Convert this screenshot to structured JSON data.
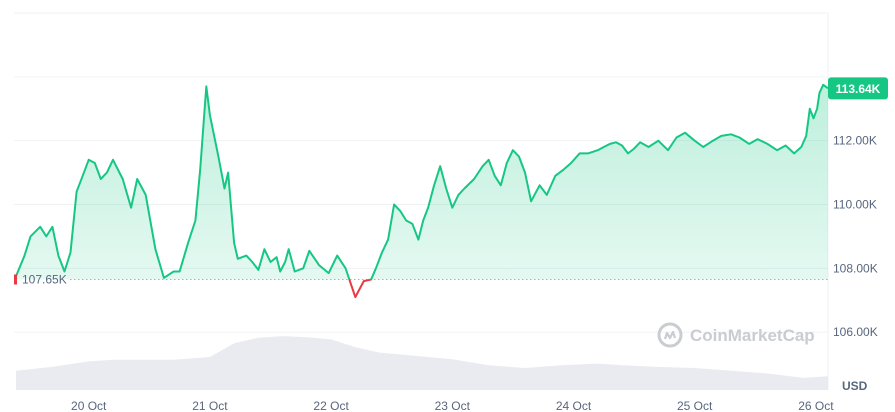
{
  "chart_data": {
    "type": "area",
    "ylabel": "USD",
    "ylim": [
      104000,
      116000
    ],
    "yticks": [
      106000,
      108000,
      110000,
      112000
    ],
    "ytick_labels": [
      "106.00K",
      "108.00K",
      "110.00K",
      "112.00K"
    ],
    "open_label": "107.65K",
    "open_value": 107650,
    "current_label": "113.64K",
    "current_value": 113640,
    "xticks": [
      {
        "t": 0.6,
        "label": "20 Oct"
      },
      {
        "t": 1.6,
        "label": "21 Oct"
      },
      {
        "t": 2.6,
        "label": "22 Oct"
      },
      {
        "t": 3.6,
        "label": "23 Oct"
      },
      {
        "t": 4.6,
        "label": "24 Oct"
      },
      {
        "t": 5.6,
        "label": "25 Oct"
      },
      {
        "t": 6.6,
        "label": "26 Oct"
      }
    ],
    "watermark": "CoinMarketCap",
    "colors": {
      "up": "#16c784",
      "down": "#ea3943",
      "fill_top": "#16c784",
      "badge": "#16c784",
      "volume": "#e7e9ee"
    },
    "series": [
      {
        "t": [
          0.0,
          0.07,
          0.12,
          0.2,
          0.25,
          0.3,
          0.35,
          0.4,
          0.45,
          0.5,
          0.55,
          0.6,
          0.65,
          0.7,
          0.75,
          0.8,
          0.88,
          0.95,
          1.0,
          1.07,
          1.15,
          1.22,
          1.3,
          1.35,
          1.42,
          1.48,
          1.52,
          1.57,
          1.6,
          1.67,
          1.72,
          1.75,
          1.8,
          1.83,
          1.9,
          1.95,
          2.0,
          2.05,
          2.1,
          2.15,
          2.18,
          2.22,
          2.25,
          2.3,
          2.37,
          2.42,
          2.5,
          2.58,
          2.65,
          2.72,
          2.8,
          2.87,
          2.93,
          2.97,
          3.02,
          3.07,
          3.12,
          3.17,
          3.22,
          3.27,
          3.32,
          3.36,
          3.4,
          3.45,
          3.5,
          3.55,
          3.6,
          3.65,
          3.7,
          3.78,
          3.85,
          3.9,
          3.95,
          4.0,
          4.05,
          4.1,
          4.15,
          4.2,
          4.25,
          4.32,
          4.38,
          4.45,
          4.52,
          4.58,
          4.65,
          4.72,
          4.8,
          4.85,
          4.9,
          4.95,
          5.0,
          5.05,
          5.1,
          5.15,
          5.22,
          5.3,
          5.38,
          5.45,
          5.52,
          5.6,
          5.67,
          5.75,
          5.82,
          5.9,
          5.97,
          6.05,
          6.12,
          6.2,
          6.28,
          6.35,
          6.42,
          6.48,
          6.52,
          6.55,
          6.58,
          6.61,
          6.63,
          6.66,
          6.7
        ],
        "value": [
          107.75,
          108.4,
          109.0,
          109.3,
          109.0,
          109.3,
          108.4,
          107.9,
          108.5,
          110.4,
          110.9,
          111.4,
          111.3,
          110.8,
          111.0,
          111.4,
          110.8,
          109.9,
          110.8,
          110.3,
          108.6,
          107.7,
          107.9,
          107.9,
          108.8,
          109.5,
          111.1,
          113.7,
          112.8,
          111.5,
          110.5,
          111.0,
          108.8,
          108.3,
          108.4,
          108.2,
          107.95,
          108.6,
          108.2,
          108.35,
          107.9,
          108.2,
          108.6,
          107.9,
          108.0,
          108.55,
          108.1,
          107.85,
          108.4,
          108.0,
          107.1,
          107.6,
          107.65,
          108.0,
          108.5,
          108.9,
          110.0,
          109.8,
          109.5,
          109.4,
          108.9,
          109.5,
          109.9,
          110.6,
          111.2,
          110.5,
          109.9,
          110.3,
          110.5,
          110.8,
          111.2,
          111.4,
          110.9,
          110.6,
          111.3,
          111.7,
          111.5,
          111.0,
          110.1,
          110.6,
          110.3,
          110.9,
          111.1,
          111.3,
          111.6,
          111.6,
          111.7,
          111.8,
          111.9,
          111.95,
          111.85,
          111.6,
          111.75,
          111.95,
          111.8,
          112.0,
          111.7,
          112.1,
          112.25,
          112.0,
          111.8,
          112.0,
          112.15,
          112.2,
          112.1,
          111.9,
          112.05,
          111.9,
          111.7,
          111.85,
          111.6,
          111.8,
          112.15,
          113.0,
          112.7,
          113.0,
          113.5,
          113.75,
          113.64
        ]
      }
    ],
    "volume": {
      "t": [
        0.0,
        0.3,
        0.6,
        0.8,
        1.0,
        1.3,
        1.6,
        1.8,
        2.0,
        2.2,
        2.4,
        2.6,
        2.8,
        3.0,
        3.3,
        3.6,
        3.9,
        4.2,
        4.5,
        4.8,
        5.0,
        5.3,
        5.6,
        5.9,
        6.2,
        6.5,
        6.7
      ],
      "value": [
        0.35,
        0.42,
        0.52,
        0.55,
        0.55,
        0.55,
        0.6,
        0.85,
        0.95,
        0.98,
        0.96,
        0.92,
        0.78,
        0.68,
        0.62,
        0.56,
        0.45,
        0.4,
        0.45,
        0.48,
        0.45,
        0.42,
        0.4,
        0.35,
        0.3,
        0.22,
        0.25
      ]
    }
  }
}
